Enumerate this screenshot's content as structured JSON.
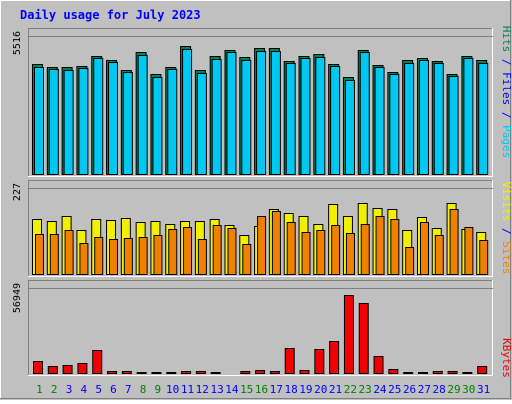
{
  "chart_data": {
    "type": "bar",
    "title": "Daily usage for July 2023",
    "categories": [
      "1",
      "2",
      "3",
      "4",
      "5",
      "6",
      "7",
      "8",
      "9",
      "10",
      "11",
      "12",
      "13",
      "14",
      "15",
      "16",
      "17",
      "18",
      "19",
      "20",
      "21",
      "22",
      "23",
      "24",
      "25",
      "26",
      "27",
      "28",
      "29",
      "30",
      "31"
    ],
    "weekend_days": [
      "1",
      "2",
      "8",
      "9",
      "15",
      "16",
      "22",
      "23",
      "29",
      "30"
    ],
    "panels": [
      {
        "name": "hits-files-pages",
        "max_label": "5516",
        "ylim": [
          0,
          5516
        ],
        "labels": [
          "Pages",
          "Files",
          "Hits"
        ],
        "series": [
          {
            "name": "Hits",
            "color": "#00805c",
            "values": [
              4400,
              4300,
              4280,
              4330,
              4720,
              4580,
              4180,
              4880,
              4000,
              4290,
              5100,
              4150,
              4720,
              4970,
              4680,
              5020,
              5020,
              4540,
              4730,
              4790,
              4420,
              3880,
              4970,
              4370,
              4090,
              4550,
              4650,
              4540,
              4020,
              4730,
              4550
            ]
          },
          {
            "name": "Files",
            "color": "#00c8f0",
            "values": [
              4380,
              4270,
              4250,
              4310,
              4710,
              4560,
              4160,
              4860,
              3980,
              4270,
              5080,
              4130,
              4700,
              4950,
              4660,
              5000,
              5000,
              4520,
              4710,
              4770,
              4400,
              3860,
              4950,
              4350,
              4070,
              4530,
              4630,
              4520,
              4000,
              4710,
              4530
            ]
          }
        ]
      },
      {
        "name": "visits-sites",
        "max_label": "227",
        "ylim": [
          0,
          227
        ],
        "labels": [
          "Sites",
          "Visits"
        ],
        "series": [
          {
            "name": "Visits",
            "color": "#f0f000",
            "values": [
              145,
              140,
              153,
              117,
              147,
              144,
              149,
              139,
              141,
              134,
              140,
              142,
              145,
              131,
              104,
              129,
              172,
              163,
              155,
              132,
              184,
              153,
              187,
              176,
              172,
              118,
              151,
              123,
              189,
              120,
              113
            ]
          },
          {
            "name": "Sites",
            "color": "#f08000",
            "values": [
              108,
              108,
              117,
              83,
              99,
              95,
              97,
              98,
              105,
              119,
              126,
              95,
              130,
              122,
              82,
              153,
              167,
              137,
              112,
              118,
              131,
              109,
              132,
              155,
              147,
              73,
              139,
              105,
              173,
              124,
              92
            ]
          }
        ]
      },
      {
        "name": "kbytes",
        "max_label": "56949",
        "ylim": [
          0,
          56949
        ],
        "labels": [
          "KBytes"
        ],
        "series": [
          {
            "name": "KBytes",
            "color": "#f00000",
            "values": [
              8800,
              5000,
              5800,
              7100,
              16200,
              2300,
              2000,
              1600,
              1600,
              1600,
              2000,
              2000,
              1500,
              900,
              1800,
              2500,
              2000,
              17000,
              2700,
              16700,
              21800,
              52500,
              47200,
              12200,
              3300,
              1500,
              1500,
              2200,
              1800,
              1400,
              5500
            ]
          }
        ]
      }
    ]
  },
  "colors": {
    "background": "#c0c0c0",
    "title": "#0000ff",
    "weekday_label": "#0000ff",
    "weekend_label": "#008000",
    "pages_label": "#00c8f0",
    "files_label": "#0000ff",
    "hits_label": "#00805c",
    "sites_label": "#f08000",
    "visits_label": "#f0f000",
    "kbytes_label": "#f00000"
  }
}
